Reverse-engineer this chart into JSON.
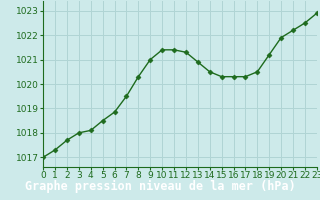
{
  "x": [
    0,
    1,
    2,
    3,
    4,
    5,
    6,
    7,
    8,
    9,
    10,
    11,
    12,
    13,
    14,
    15,
    16,
    17,
    18,
    19,
    20,
    21,
    22,
    23
  ],
  "y": [
    1017.0,
    1017.3,
    1017.7,
    1018.0,
    1018.1,
    1018.5,
    1018.85,
    1019.5,
    1020.3,
    1021.0,
    1021.4,
    1021.4,
    1021.3,
    1020.9,
    1020.5,
    1020.3,
    1020.3,
    1020.3,
    1020.5,
    1021.2,
    1021.9,
    1022.2,
    1022.5,
    1022.9
  ],
  "line_color": "#1e6b1e",
  "marker": "D",
  "marker_size": 2.5,
  "bg_color": "#cdeaea",
  "grid_color": "#b0d4d4",
  "footer_bg": "#2e6b2e",
  "footer_text": "Graphe pression niveau de la mer (hPa)",
  "footer_text_color": "#ffffff",
  "ylim": [
    1016.6,
    1023.4
  ],
  "yticks": [
    1017,
    1018,
    1019,
    1020,
    1021,
    1022,
    1023
  ],
  "xlim": [
    0,
    23
  ],
  "xticks": [
    0,
    1,
    2,
    3,
    4,
    5,
    6,
    7,
    8,
    9,
    10,
    11,
    12,
    13,
    14,
    15,
    16,
    17,
    18,
    19,
    20,
    21,
    22,
    23
  ],
  "tick_fontsize": 6.5,
  "footer_fontsize": 8.5,
  "line_width": 1.0
}
